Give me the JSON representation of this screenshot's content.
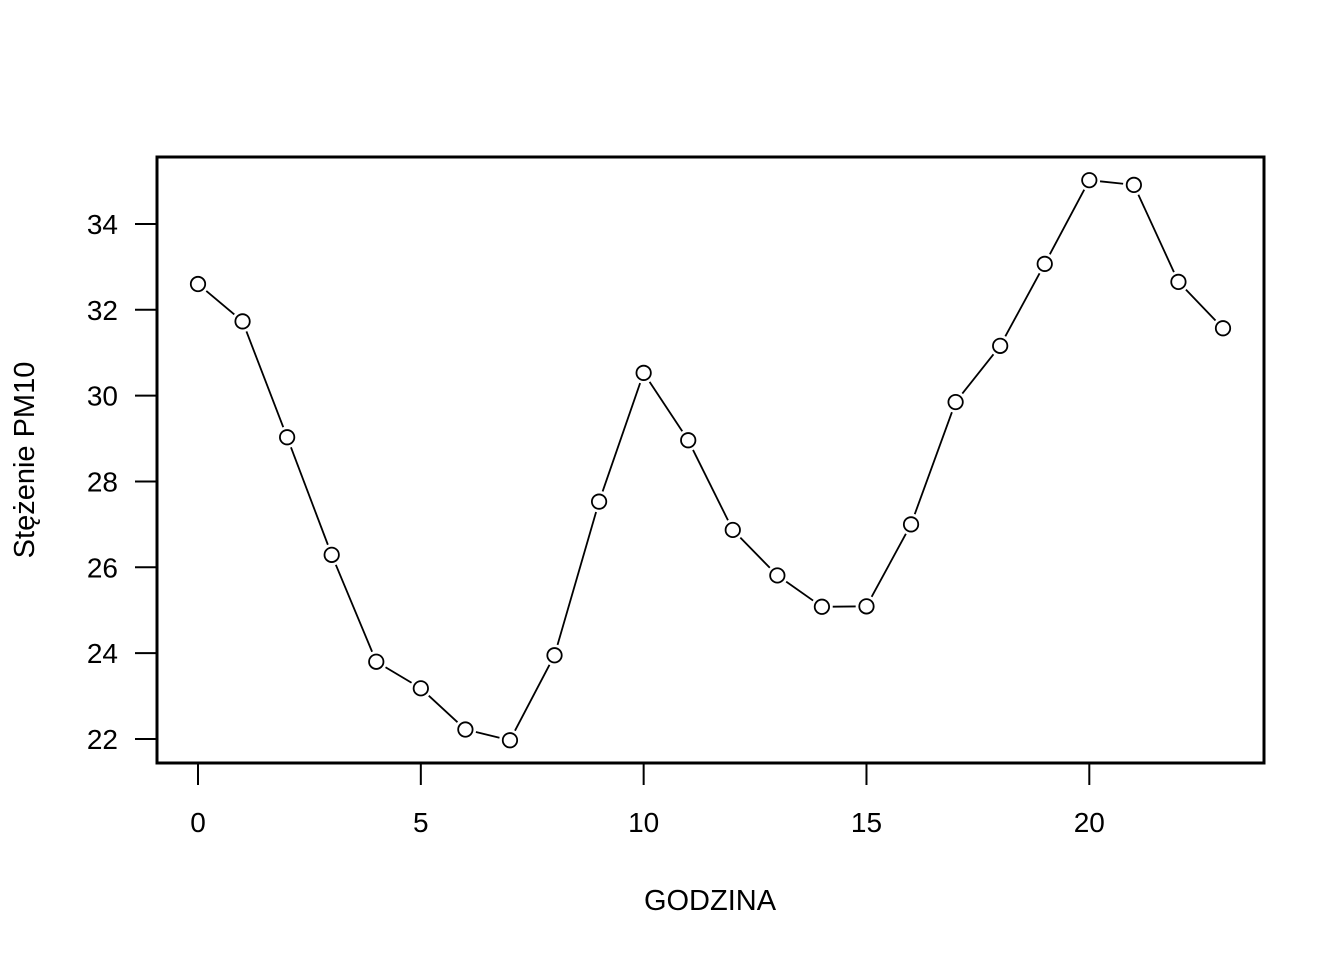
{
  "chart_data": {
    "type": "line",
    "title": "",
    "xlabel": "GODZINA",
    "ylabel": "Stężenie PM10",
    "x": [
      0,
      1,
      2,
      3,
      4,
      5,
      6,
      7,
      8,
      9,
      10,
      11,
      12,
      13,
      14,
      15,
      16,
      17,
      18,
      19,
      20,
      21,
      22,
      23
    ],
    "series": [
      {
        "values": [
          32.6,
          31.73,
          29.03,
          26.29,
          23.8,
          23.18,
          22.22,
          21.97,
          23.95,
          27.53,
          30.53,
          28.96,
          26.87,
          25.81,
          25.08,
          25.09,
          27.0,
          29.85,
          31.16,
          33.07,
          35.02,
          34.91,
          32.65,
          31.57
        ]
      }
    ],
    "xlim": [
      -0.92,
      23.92
    ],
    "ylim": [
      21.44,
      35.56
    ],
    "xticks": [
      0,
      5,
      10,
      15,
      20
    ],
    "yticks": [
      22,
      24,
      26,
      28,
      30,
      32,
      34
    ],
    "grid": false,
    "legend": "none",
    "marker": "open-circle",
    "line_color": "#000000"
  }
}
